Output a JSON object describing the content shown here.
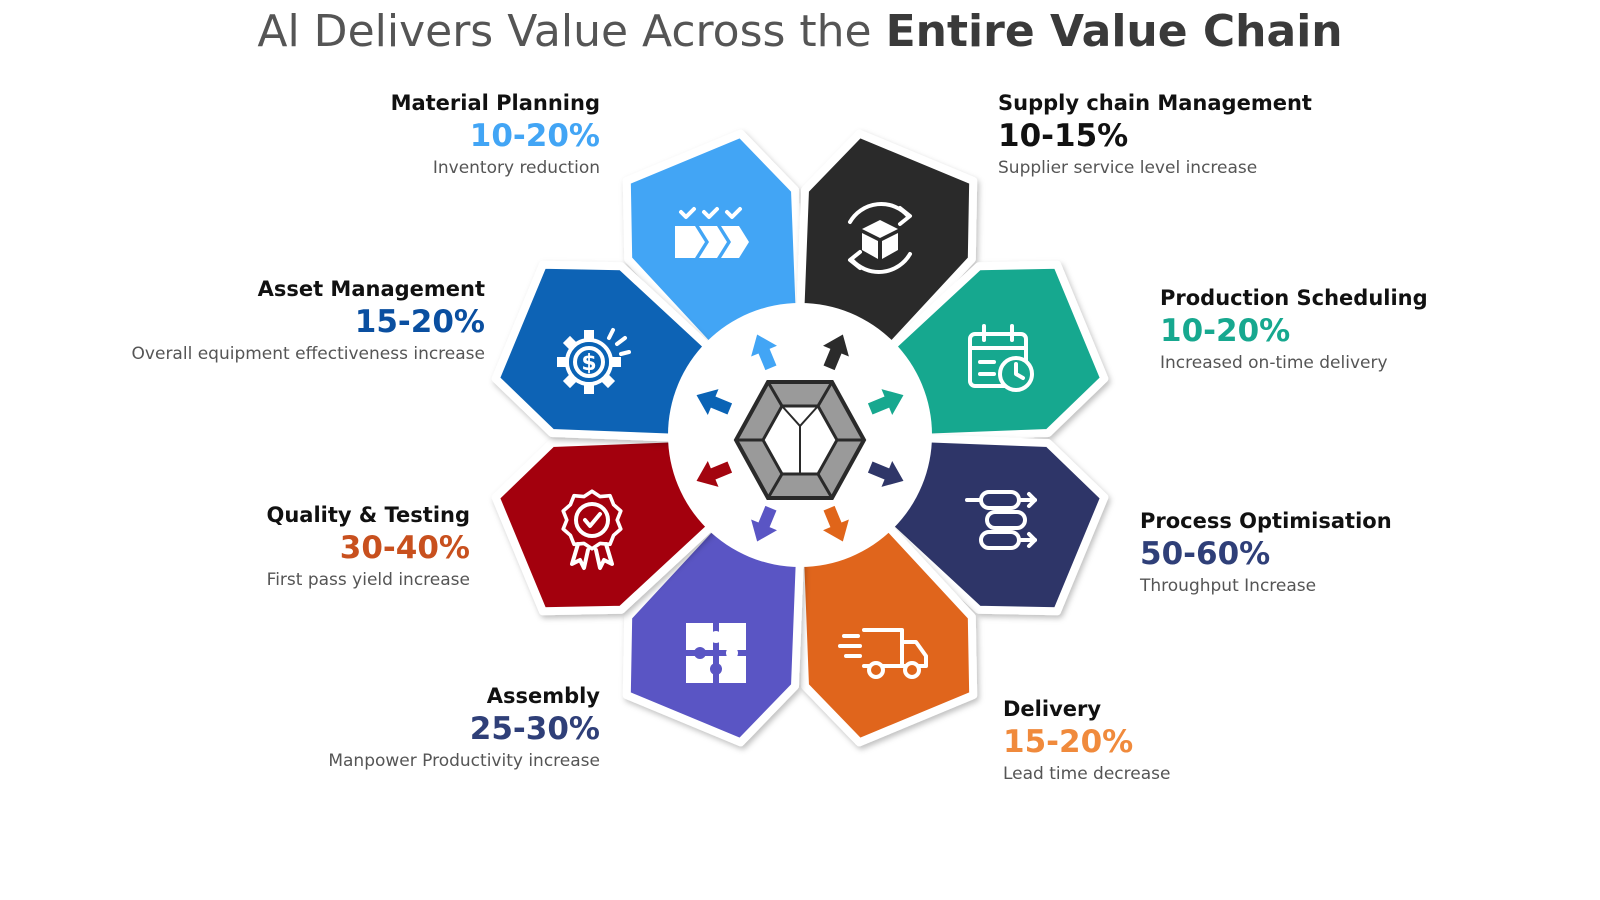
{
  "title": {
    "prefix": "Al Delivers Value Across the",
    "emphasis": "Entire Value Chain"
  },
  "segments": [
    {
      "name": "Material Planning",
      "percent": "10-20%",
      "description": "Inventory reduction",
      "color": "#42a5f5",
      "percent_color": "#42a5f5",
      "icon": "checklist-chevrons-icon"
    },
    {
      "name": "Supply chain Management",
      "percent": "10-15%",
      "description": "Supplier service level increase",
      "color": "#2b2b2b",
      "percent_color": "#111111",
      "icon": "box-cycle-icon"
    },
    {
      "name": "Production Scheduling",
      "percent": "10-20%",
      "description": "Increased on-time delivery",
      "color": "#17a88f",
      "percent_color": "#17a88f",
      "icon": "calendar-clock-icon"
    },
    {
      "name": "Process Optimisation",
      "percent": "50-60%",
      "description": "Throughput Increase",
      "color": "#2f3668",
      "percent_color": "#2f3f78",
      "icon": "process-flow-icon"
    },
    {
      "name": "Delivery",
      "percent": "15-20%",
      "description": "Lead time decrease",
      "color": "#e0651a",
      "percent_color": "#f08a3c",
      "icon": "truck-icon"
    },
    {
      "name": "Assembly",
      "percent": "25-30%",
      "description": "Manpower Productivity increase",
      "color": "#5a55c4",
      "percent_color": "#2f3f78",
      "icon": "puzzle-icon"
    },
    {
      "name": "Quality & Testing",
      "percent": "30-40%",
      "description": "First pass yield increase",
      "color": "#a3050f",
      "percent_color": "#c8501e",
      "icon": "award-badge-icon"
    },
    {
      "name": "Asset Management",
      "percent": "15-20%",
      "description": "Overall equipment effectiveness increase",
      "color": "#0a63b5",
      "percent_color": "#0a4fa0",
      "icon": "gear-dollar-icon"
    }
  ],
  "hub": {
    "icon": "cube-icon"
  }
}
